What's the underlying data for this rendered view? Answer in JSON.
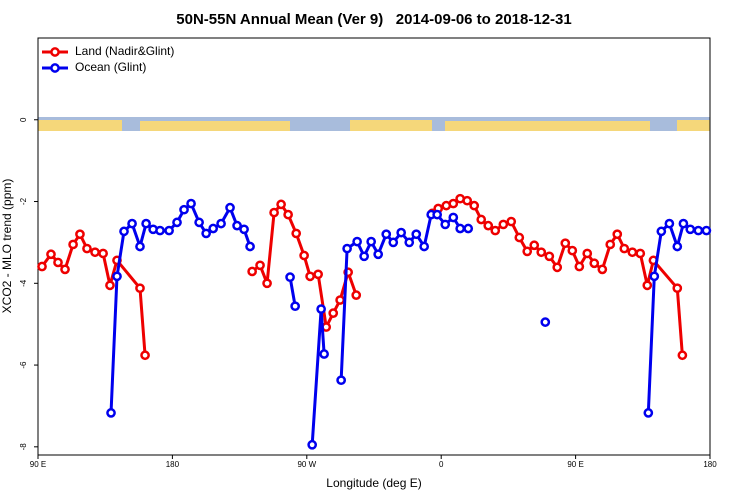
{
  "chart_data": {
    "type": "line",
    "title": "50N-55N Annual Mean (Ver 9)   2014-09-06 to 2018-12-31",
    "xlabel": "Longitude (deg E)",
    "ylabel": "XCO2 - MLO trend (ppm)",
    "xlim": [
      90,
      540
    ],
    "xticks": [
      {
        "value": 90,
        "label": "90 E"
      },
      {
        "value": 180,
        "label": "180"
      },
      {
        "value": 270,
        "label": "90 W"
      },
      {
        "value": 360,
        "label": "0"
      },
      {
        "value": 450,
        "label": "90 E"
      },
      {
        "value": 540,
        "label": "180"
      }
    ],
    "ylim": [
      -8.2,
      2
    ],
    "yticks": [
      0,
      -2,
      -4,
      -6,
      -8
    ],
    "legend": "top-left",
    "series": [
      {
        "name": "Land (Nadir&Glint)",
        "color": "#ee0000",
        "x": [
          92.7,
          98.7,
          103.4,
          108.1,
          113.5,
          118.1,
          122.8,
          128.2,
          133.6,
          138.2,
          142.9,
          158.3,
          161.7,
          null,
          233.4,
          238.7,
          243.4,
          248.1,
          252.8,
          257.5,
          262.9,
          268.2,
          272.2,
          277.6,
          283.0,
          287.7,
          292.3,
          297.7,
          303.1,
          null,
          354.0,
          358.0,
          363.4,
          368.1,
          372.7,
          377.4,
          382.1,
          386.8,
          391.5,
          396.2,
          401.6,
          406.9,
          412.3,
          417.6,
          422.3,
          427.0,
          432.4,
          437.7,
          443.1,
          447.8,
          452.5,
          457.8,
          462.5,
          467.9,
          473.2,
          477.9,
          482.6,
          488.0,
          493.3,
          498.0,
          502.1,
          518.1,
          521.5
        ],
        "values": [
          -3.59,
          -3.29,
          -3.49,
          -3.66,
          -3.05,
          -2.8,
          -3.15,
          -3.24,
          -3.27,
          -4.05,
          -3.44,
          -4.12,
          -5.76,
          null,
          -3.71,
          -3.56,
          -4.0,
          -2.27,
          -2.07,
          -2.32,
          -2.78,
          -3.32,
          -3.83,
          -3.78,
          -5.07,
          -4.73,
          -4.41,
          -3.73,
          -4.29,
          null,
          -2.29,
          -2.17,
          -2.1,
          -2.05,
          -1.93,
          -1.98,
          -2.1,
          -2.44,
          -2.59,
          -2.71,
          -2.56,
          -2.49,
          -2.88,
          -3.22,
          -3.07,
          -3.24,
          -3.34,
          -3.61,
          -3.02,
          -3.2,
          -3.59,
          -3.27,
          -3.51,
          -3.66,
          -3.05,
          -2.8,
          -3.15,
          -3.24,
          -3.27,
          -4.05,
          -3.44,
          -4.12,
          -5.76
        ]
      },
      {
        "name": "Ocean (Glint)",
        "color": "#0000ee",
        "x": [
          138.9,
          142.9,
          147.6,
          153.0,
          158.3,
          162.4,
          167.1,
          171.7,
          177.8,
          183.1,
          187.8,
          192.5,
          197.9,
          202.6,
          207.3,
          212.6,
          218.6,
          223.3,
          228.0,
          232.0,
          null,
          258.8,
          262.2,
          null,
          273.6,
          279.6,
          281.6,
          null,
          293.0,
          297.0,
          303.7,
          308.4,
          313.1,
          317.8,
          323.2,
          327.9,
          333.2,
          338.6,
          343.3,
          348.6,
          353.3,
          357.3,
          362.7,
          368.1,
          372.7,
          378.1,
          null,
          429.7,
          null,
          498.7,
          502.7,
          507.4,
          512.8,
          518.1,
          522.2,
          526.8,
          532.2,
          537.6
        ],
        "values": [
          -7.17,
          -3.83,
          -2.73,
          -2.54,
          -3.1,
          -2.54,
          -2.68,
          -2.71,
          -2.71,
          -2.51,
          -2.2,
          -2.05,
          -2.51,
          -2.78,
          -2.66,
          -2.54,
          -2.15,
          -2.59,
          -2.68,
          -3.1,
          null,
          -3.85,
          -4.56,
          null,
          -7.95,
          -4.63,
          -5.73,
          null,
          -6.37,
          -3.15,
          -2.98,
          -3.34,
          -2.98,
          -3.29,
          -2.8,
          -3.0,
          -2.76,
          -3.0,
          -2.8,
          -3.1,
          -2.32,
          -2.32,
          -2.56,
          -2.39,
          -2.66,
          -2.66,
          null,
          -4.95,
          null,
          -7.17,
          -3.83,
          -2.73,
          -2.54,
          -3.1,
          -2.54,
          -2.68,
          -2.71,
          -2.71
        ]
      }
    ]
  }
}
